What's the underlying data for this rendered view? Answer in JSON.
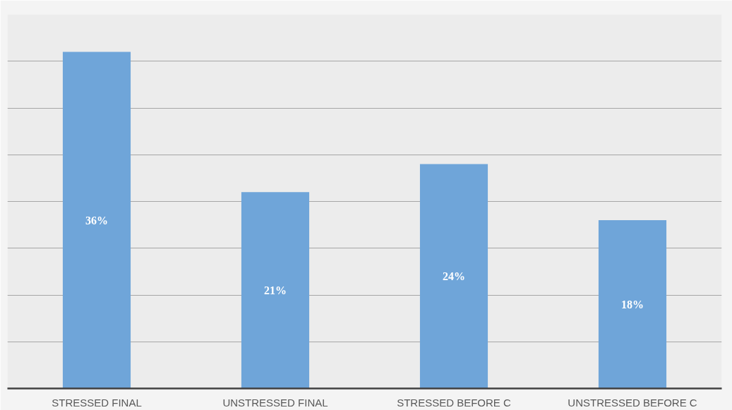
{
  "chart_data": {
    "type": "bar",
    "categories": [
      "STRESSED FINAL",
      "UNSTRESSED FINAL",
      "STRESSED BEFORE C",
      "UNSTRESSED BEFORE C"
    ],
    "values": [
      36,
      21,
      24,
      18
    ],
    "value_labels": [
      "36%",
      "21%",
      "24%",
      "18%"
    ],
    "color": "#6fa5d9",
    "ylim": [
      0,
      40
    ],
    "yticks": [
      {
        "value": 0,
        "label": null
      },
      {
        "value": 5,
        "label": null
      },
      {
        "value": 10,
        "label": null
      },
      {
        "value": 15,
        "label": null
      },
      {
        "value": 20,
        "label": null
      },
      {
        "value": 25,
        "label": null
      },
      {
        "value": 30,
        "label": null
      },
      {
        "value": 35,
        "label": null
      },
      {
        "value": 40,
        "label": null
      }
    ],
    "tick_labels": "x",
    "grid": "y"
  }
}
